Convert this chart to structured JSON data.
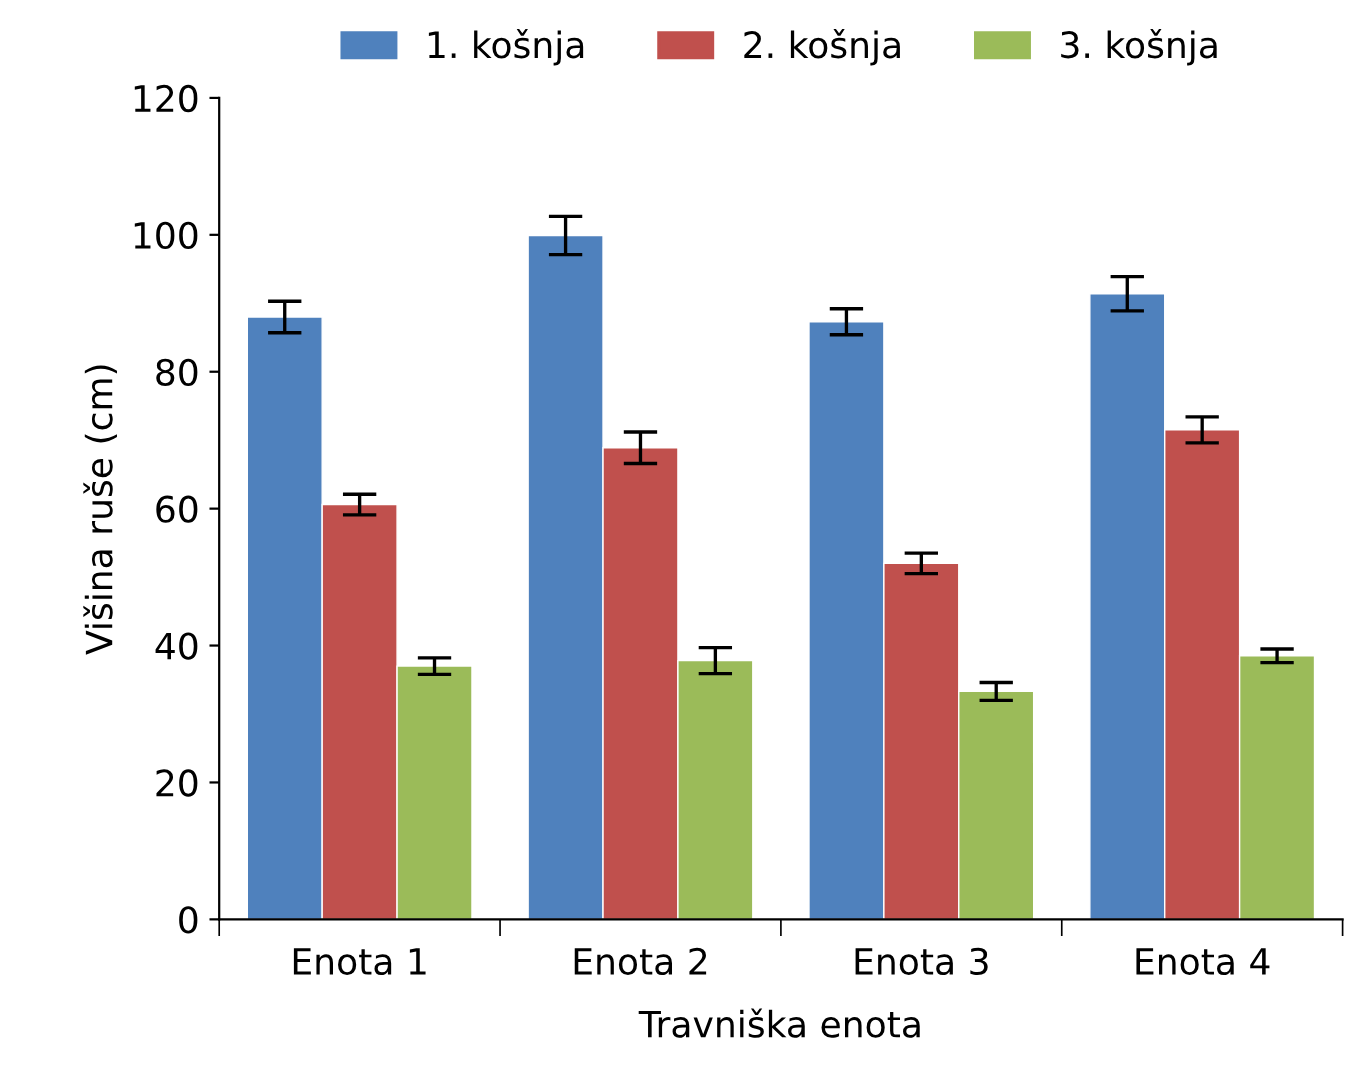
{
  "chart_data": {
    "type": "bar",
    "xlabel": "Travniška enota",
    "ylabel": "Višina ruše (cm)",
    "categories": [
      "Enota 1",
      "Enota 2",
      "Enota 3",
      "Enota 4"
    ],
    "series": [
      {
        "name": "1. košnja",
        "color": "#4f81bd",
        "values": [
          88.0,
          99.9,
          87.3,
          91.4
        ],
        "errors": [
          2.3,
          2.8,
          1.9,
          2.5
        ]
      },
      {
        "name": "2. košnja",
        "color": "#c0504d",
        "values": [
          60.6,
          68.9,
          52.0,
          71.5
        ],
        "errors": [
          1.5,
          2.3,
          1.5,
          1.9
        ]
      },
      {
        "name": "3. košnja",
        "color": "#9bbb59",
        "values": [
          37.0,
          37.8,
          33.3,
          38.5
        ],
        "errors": [
          1.2,
          1.9,
          1.3,
          1.0
        ]
      }
    ],
    "ylim": [
      0,
      120
    ],
    "yticks": [
      0,
      20,
      40,
      60,
      80,
      100,
      120
    ],
    "grid": false,
    "legend": "top"
  }
}
